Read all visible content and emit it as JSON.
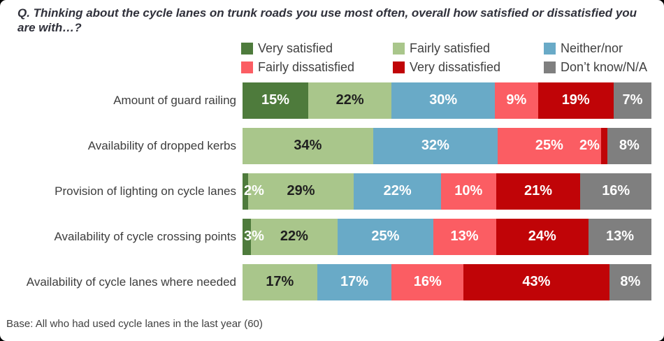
{
  "title": "Q. Thinking about the cycle lanes on trunk roads you use most often, overall how satisfied or dissatisfied you are with…?",
  "base_note": "Base: All who had used cycle lanes in the last year (60)",
  "colors": {
    "title_text": "#30313b",
    "body_text": "#404040",
    "background": "#ffffff"
  },
  "chart_data": {
    "type": "bar",
    "stacked": true,
    "orientation": "horizontal",
    "value_suffix": "%",
    "axis_range": [
      0,
      100
    ],
    "grid": false,
    "legend_position": "top",
    "categories": [
      "Amount of guard railing",
      "Availability of dropped kerbs",
      "Provision of lighting on cycle lanes",
      "Availability of cycle crossing points",
      "Availability of cycle lanes where needed"
    ],
    "series": [
      {
        "name": "Very satisfied",
        "color": "#4e7b3c",
        "label_color": "#ffffff",
        "values": [
          15,
          0,
          2,
          3,
          0
        ]
      },
      {
        "name": "Fairly satisfied",
        "color": "#a9c68b",
        "label_color": "#1f1f1f",
        "values": [
          22,
          34,
          29,
          22,
          17
        ]
      },
      {
        "name": "Neither/nor",
        "color": "#69aac7",
        "label_color": "#ffffff",
        "values": [
          30,
          32,
          22,
          25,
          17
        ]
      },
      {
        "name": "Fairly dissatisfied",
        "color": "#fb5d63",
        "label_color": "#ffffff",
        "values": [
          9,
          25,
          10,
          13,
          16
        ]
      },
      {
        "name": "Very dissatisfied",
        "color": "#c00407",
        "label_color": "#ffffff",
        "values": [
          19,
          2,
          21,
          24,
          43
        ]
      },
      {
        "name": "Don’t know/N/A",
        "color": "#7f7f7f",
        "label_color": "#ffffff",
        "values": [
          7,
          8,
          16,
          13,
          8
        ]
      }
    ]
  }
}
